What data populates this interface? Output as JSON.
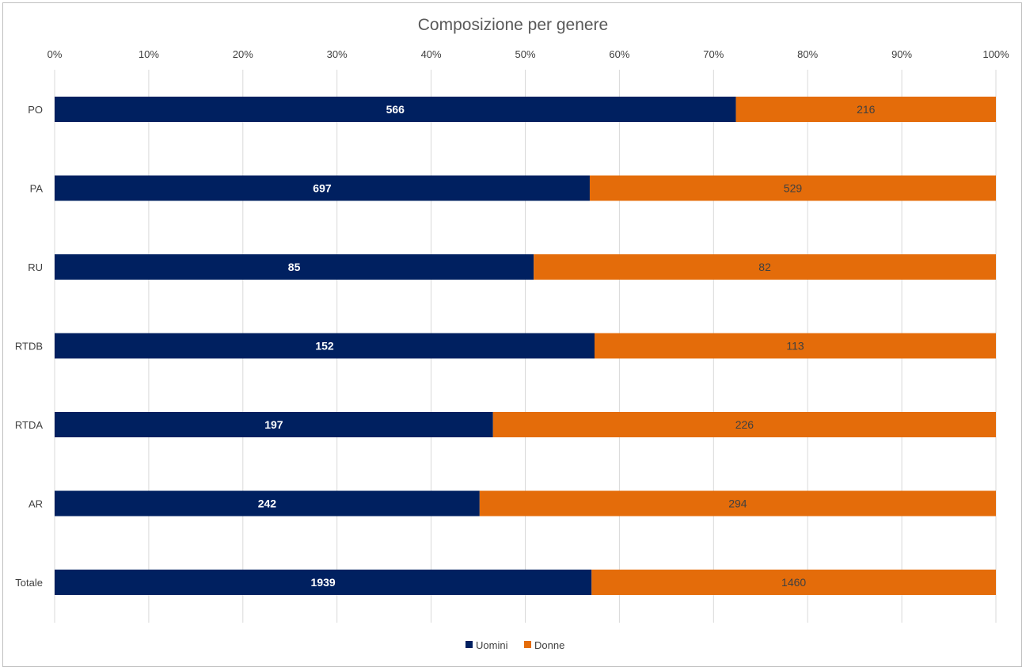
{
  "chart_data": {
    "type": "bar",
    "orientation": "horizontal",
    "stacked": "percent",
    "title": "Composizione per genere",
    "categories": [
      "PO",
      "PA",
      "RU",
      "RTDB",
      "RTDA",
      "AR",
      "Totale"
    ],
    "series": [
      {
        "name": "Uomini",
        "values": [
          566,
          697,
          85,
          152,
          197,
          242,
          1939
        ],
        "color": "#002060"
      },
      {
        "name": "Donne",
        "values": [
          216,
          529,
          82,
          113,
          226,
          294,
          1460
        ],
        "color": "#E46C0A"
      }
    ],
    "x_ticks": [
      "0%",
      "10%",
      "20%",
      "30%",
      "40%",
      "50%",
      "60%",
      "70%",
      "80%",
      "90%",
      "100%"
    ],
    "xlim": [
      0,
      100
    ],
    "grid": true,
    "legend": "bottom"
  }
}
